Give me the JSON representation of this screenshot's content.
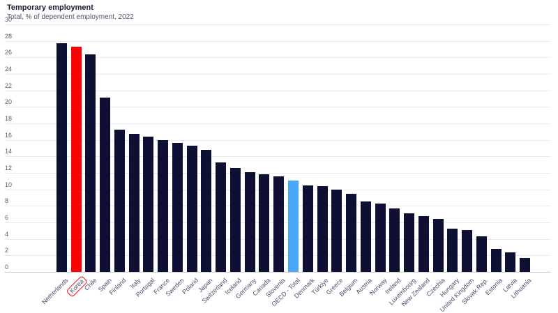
{
  "header": {
    "title": "Temporary employment",
    "subtitle": "Total, % of dependent employment, 2022"
  },
  "chart_data": {
    "type": "bar",
    "title": "Temporary employment",
    "subtitle": "Total, % of dependent employment, 2022",
    "xlabel": "",
    "ylabel": "% of dependent employment",
    "ylim": [
      0,
      30
    ],
    "ytick_step": 2,
    "grid": true,
    "legend": "none",
    "categories": [
      "Netherlands",
      "Korea",
      "Chile",
      "Spain",
      "Finland",
      "Italy",
      "Portugal",
      "France",
      "Sweden",
      "Poland",
      "Japan",
      "Switzerland",
      "Iceland",
      "Germany",
      "Canada",
      "Slovenia",
      "OECD - Total",
      "Denmark",
      "Türkiye",
      "Greece",
      "Belgium",
      "Austria",
      "Norway",
      "Ireland",
      "Luxembourg",
      "New Zealand",
      "Czechia",
      "Hungary",
      "United Kingdom",
      "Slovak Rep.",
      "Estonia",
      "Latvia",
      "Lithuania"
    ],
    "values": [
      27.7,
      27.3,
      26.4,
      21.1,
      17.2,
      16.7,
      16.4,
      16.0,
      15.6,
      15.3,
      14.8,
      13.3,
      12.6,
      12.1,
      11.8,
      11.6,
      11.1,
      10.5,
      10.4,
      10.0,
      9.5,
      8.5,
      8.3,
      7.7,
      7.1,
      6.8,
      6.4,
      5.2,
      5.1,
      4.3,
      2.8,
      2.4,
      1.7
    ],
    "highlighted_category": "Korea",
    "secondary_highlight_category": "OECD - Total",
    "highlight_style": "red bar with red rounded box around its x-axis label",
    "colors": {
      "default_bar": "#0d1032",
      "highlight_bar": "#f90307",
      "secondary_bar": "#4aa7f9",
      "gridline": "#eaecf1",
      "axis_line": "#c8cbd4",
      "title": "#181c3a",
      "subtitle": "#4f5468",
      "tick_label": "#555a6e",
      "category_label": "#4a4f70",
      "highlight_box_border": "#f90307"
    }
  }
}
